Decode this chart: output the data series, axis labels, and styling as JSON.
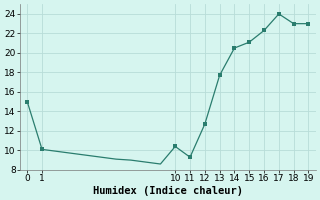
{
  "categories": [
    "0",
    "1",
    "",
    "",
    "",
    "",
    "",
    "",
    "",
    "",
    "10",
    "11",
    "12",
    "13",
    "14",
    "15",
    "16",
    "17",
    "18",
    "19"
  ],
  "x_positions": [
    0,
    1,
    2,
    3,
    4,
    5,
    6,
    7,
    8,
    9,
    10,
    11,
    12,
    13,
    14,
    15,
    16,
    17,
    18,
    19
  ],
  "y_values": [
    15,
    10.1,
    9.9,
    9.7,
    9.5,
    9.3,
    9.1,
    9.0,
    8.8,
    8.6,
    10.4,
    9.3,
    12.7,
    17.7,
    20.5,
    21.1,
    22.3,
    24.0,
    23.0,
    23.0
  ],
  "marker_x": [
    0,
    1,
    10,
    11,
    12,
    13,
    14,
    15,
    16,
    17,
    18,
    19
  ],
  "marker_y": [
    15,
    10.1,
    10.4,
    9.3,
    12.7,
    17.7,
    20.5,
    21.1,
    22.3,
    24.0,
    23.0,
    23.0
  ],
  "line_color": "#2a7d6e",
  "marker_color": "#2a7d6e",
  "bg_color": "#d6f5ef",
  "grid_color": "#b8ddd8",
  "xlabel": "Humidex (Indice chaleur)",
  "ylim": [
    8,
    25
  ],
  "yticks": [
    8,
    10,
    12,
    14,
    16,
    18,
    20,
    22,
    24
  ],
  "tick_labels": [
    "0",
    "1",
    "10",
    "11",
    "12",
    "13",
    "14",
    "15",
    "16",
    "17",
    "18",
    "19"
  ],
  "tick_positions": [
    0,
    1,
    10,
    11,
    12,
    13,
    14,
    15,
    16,
    17,
    18,
    19
  ],
  "xlabel_fontsize": 7.5,
  "tick_fontsize": 6.5,
  "ytick_fontsize": 6.5
}
